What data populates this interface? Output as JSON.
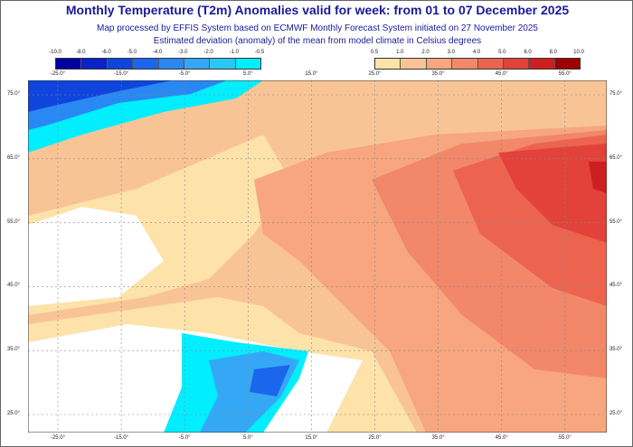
{
  "title": "Monthly Temperature (T2m) Anomalies valid for week: from 01 to 07 December 2025",
  "subtitle1": "Map processed by EFFIS System based on ECMWF Monthly Forecast System initiated on 27 November 2025",
  "subtitle2": "Estimated deviation (anomaly) of the mean from model climate in Celsius degrees",
  "legend_cold": {
    "labels": [
      "-10.0",
      "-8.0",
      "-6.0",
      "-5.0",
      "-4.0",
      "-3.0",
      "-2.0",
      "-1.0",
      "-0.5"
    ],
    "colors": [
      "#0000a0",
      "#0a22c8",
      "#0f45dc",
      "#1a66ec",
      "#2a88f2",
      "#35a8f5",
      "#28c8f5",
      "#00eeff"
    ]
  },
  "legend_warm": {
    "labels": [
      "0.5",
      "1.0",
      "2.0",
      "3.0",
      "4.0",
      "5.0",
      "6.0",
      "8.0",
      "10.0"
    ],
    "colors": [
      "#fde2aa",
      "#f9c495",
      "#f7a67f",
      "#f2876a",
      "#ec6450",
      "#e2423a",
      "#cc1f1f",
      "#a00000"
    ]
  },
  "lon_labels": [
    "-25.0°",
    "-15.0°",
    "-5.0°",
    "5.0°",
    "15.0°",
    "25.0°",
    "35.0°",
    "45.0°",
    "55.0°"
  ],
  "lat_labels": [
    "75.0°",
    "65.0°",
    "55.0°",
    "45.0°",
    "35.0°",
    "25.0°"
  ]
}
